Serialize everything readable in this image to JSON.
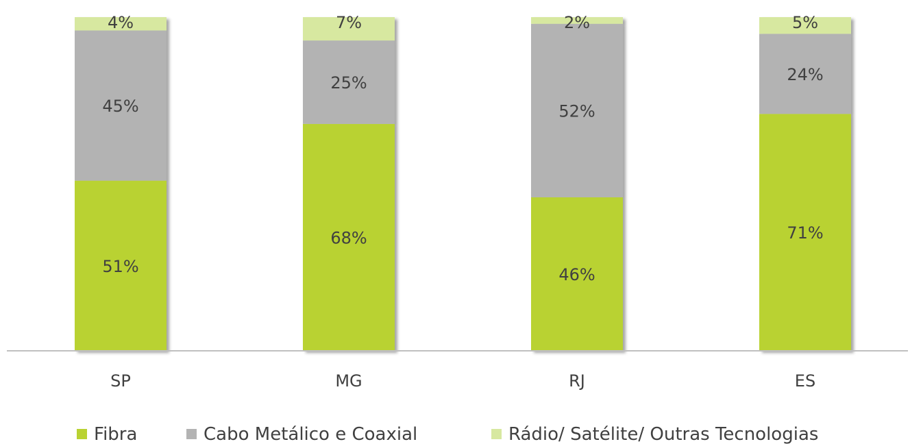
{
  "chart_data": {
    "type": "bar",
    "stacked": true,
    "categories": [
      "SP",
      "MG",
      "RJ",
      "ES"
    ],
    "series": [
      {
        "name": "Fibra",
        "values": [
          51,
          68,
          46,
          71
        ],
        "labels": [
          "51%",
          "68%",
          "46%",
          "71%"
        ],
        "color": "#b9d232"
      },
      {
        "name": "Cabo Metálico e Coaxial",
        "values": [
          45,
          25,
          52,
          24
        ],
        "labels": [
          "45%",
          "25%",
          "52%",
          "24%"
        ],
        "color": "#b3b3b3"
      },
      {
        "name": "Rádio/ Satélite/ Outras Tecnologias",
        "values": [
          4,
          7,
          2,
          5
        ],
        "labels": [
          "4%",
          "7%",
          "2%",
          "5%"
        ],
        "color": "#d7e8a0"
      }
    ],
    "ylim": [
      0,
      100
    ],
    "grid": false,
    "legend_position": "bottom",
    "label_color": "#404040",
    "axis_color": "#bfbfbf"
  }
}
